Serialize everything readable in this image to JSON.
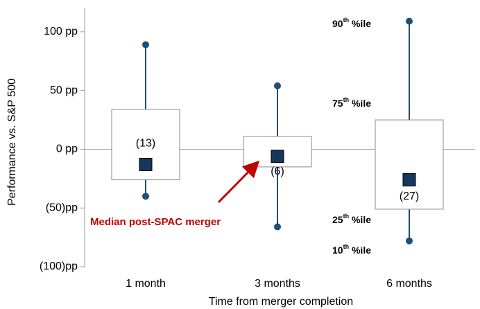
{
  "chart_data": {
    "type": "box",
    "y_label": "Performance vs. S&P 500",
    "x_label": "Time from merger completion",
    "categories": [
      "1 month",
      "3 months",
      "6 months"
    ],
    "p90": [
      89,
      54,
      109
    ],
    "p75": [
      34,
      11,
      25
    ],
    "median": [
      -13,
      -6,
      -26
    ],
    "p25": [
      -26,
      -15,
      -51
    ],
    "p10": [
      -40,
      -66,
      -78
    ],
    "count_labels": [
      "(13)",
      "(6)",
      "(27)"
    ],
    "whisker_color": "#1f4e79",
    "median_color": "#17375e",
    "ylim": [
      -100,
      120
    ],
    "yticks": [
      {
        "value": -100,
        "label": "(100)pp"
      },
      {
        "value": -50,
        "label": "(50)pp"
      },
      {
        "value": 0,
        "label": "0 pp"
      },
      {
        "value": 50,
        "label": "50 pp"
      },
      {
        "value": 100,
        "label": "100 pp"
      }
    ],
    "annotations": [
      {
        "number": "90",
        "suffix": "th",
        "rest": " %ile"
      },
      {
        "number": "75",
        "suffix": "th",
        "rest": " %ile"
      },
      {
        "number": "25",
        "suffix": "th",
        "rest": " %ile"
      },
      {
        "number": "10",
        "suffix": "th",
        "rest": " %ile"
      }
    ],
    "median_note": "Median post-SPAC merger",
    "median_note_color": "#c00000"
  }
}
